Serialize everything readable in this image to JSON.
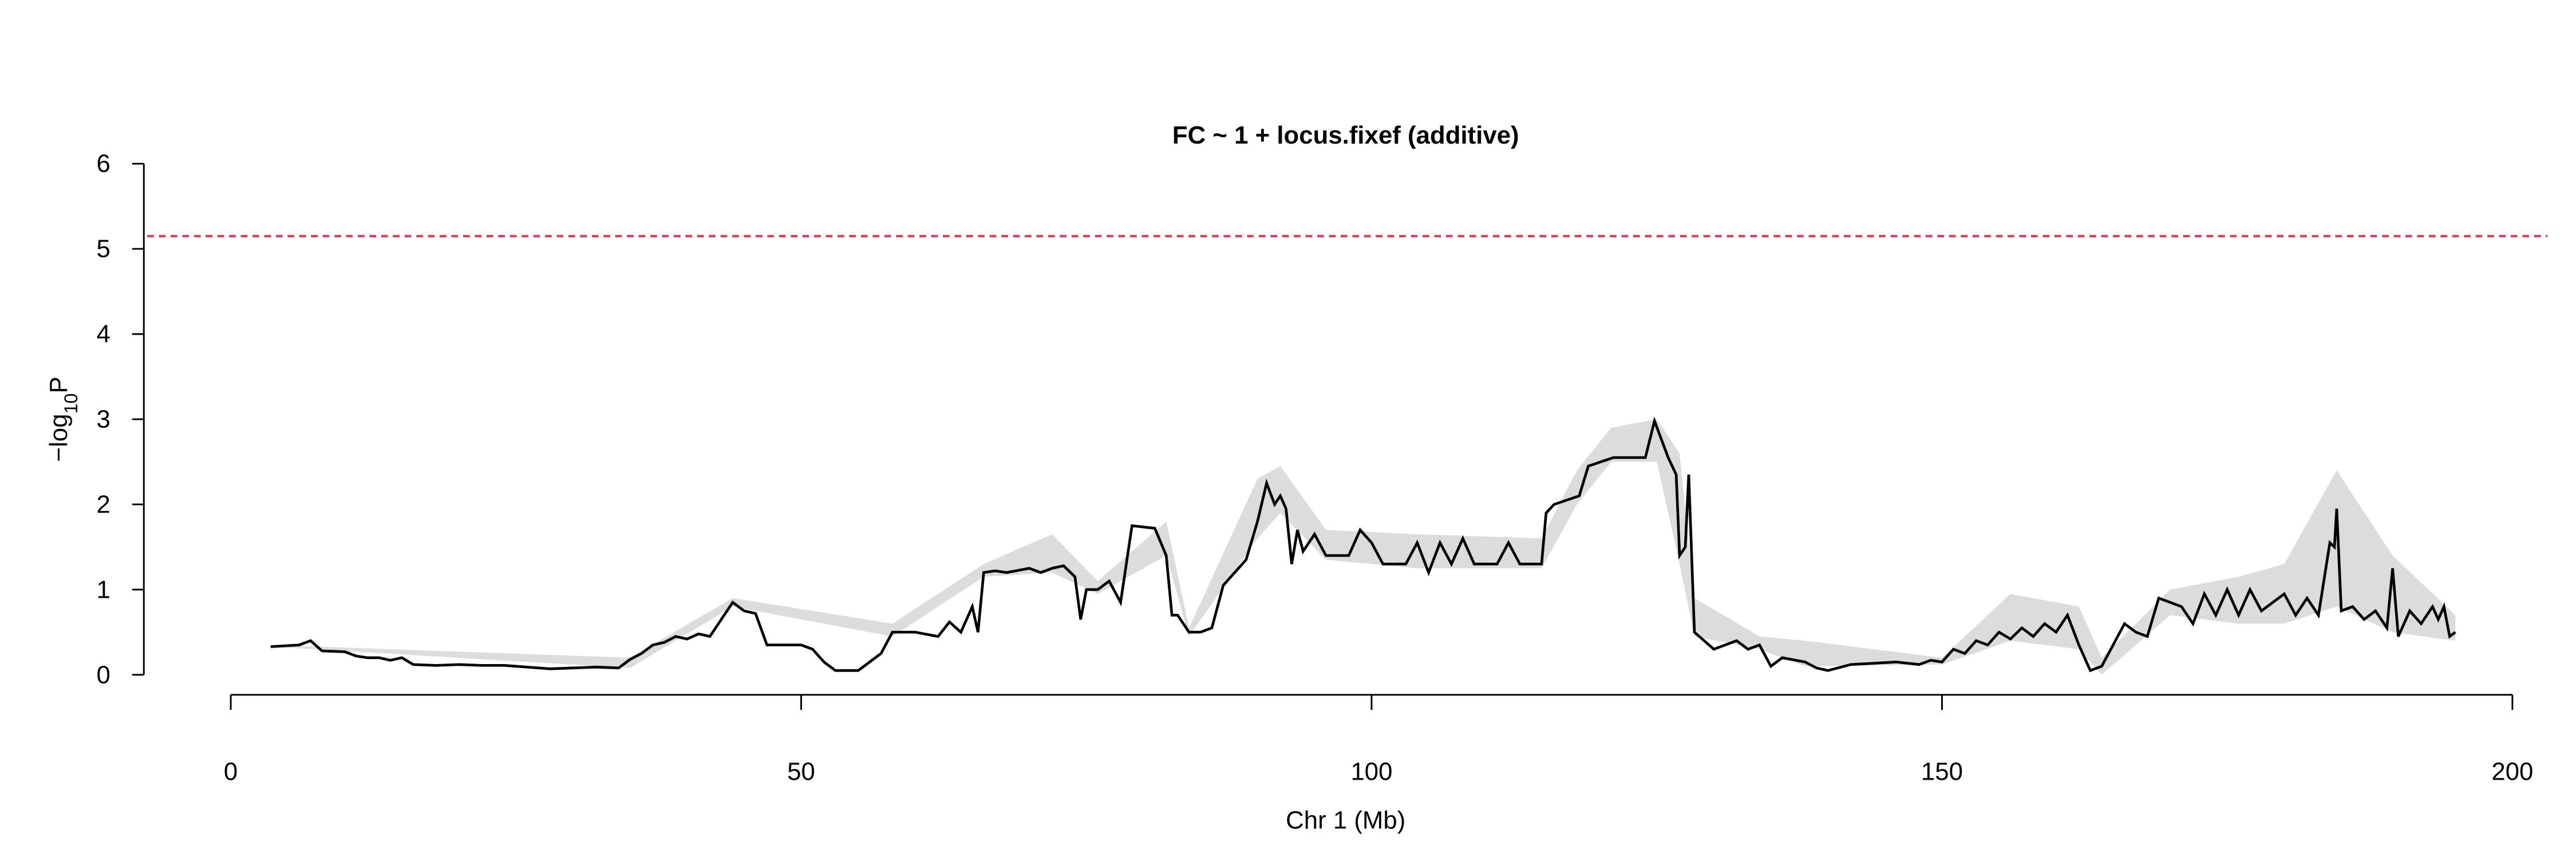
{
  "chart_data": {
    "type": "line",
    "title": "FC ~ 1 + locus.fixef (additive)",
    "xlabel": "Chr 1 (Mb)",
    "ylabel": {
      "prefix": "−log",
      "subscript": "10",
      "suffix": "P"
    },
    "xlim": [
      0,
      200
    ],
    "xticks": [
      0,
      50,
      100,
      150,
      200
    ],
    "ylim": [
      0,
      6
    ],
    "yticks": [
      0,
      1,
      2,
      3,
      4,
      5,
      6
    ],
    "threshold": 5.15,
    "threshold_color": "#e8334a",
    "x": [
      3.5,
      6,
      7,
      8,
      10,
      11,
      12,
      13,
      14,
      15,
      16,
      18,
      20,
      22,
      24,
      26,
      28,
      30,
      32,
      34,
      35,
      36,
      37,
      38,
      39,
      40,
      41,
      42,
      43,
      44,
      45,
      46,
      47,
      50,
      51,
      52,
      53,
      55,
      56,
      57,
      58,
      60,
      62,
      63,
      64,
      65,
      65.5,
      66,
      67,
      68,
      70,
      71,
      72,
      73,
      74,
      74.5,
      75,
      76,
      77,
      78,
      79,
      81,
      82,
      82.5,
      83,
      84,
      85,
      86,
      87,
      88,
      89,
      90,
      90.8,
      91.5,
      92,
      92.5,
      93,
      93.5,
      94,
      95,
      96,
      98,
      99,
      100,
      101,
      103,
      104,
      105,
      106,
      107,
      108,
      109,
      111,
      112,
      113,
      114.9,
      115.3,
      116,
      118.2,
      119,
      121.2,
      124,
      124.8,
      126,
      126.7,
      127,
      127.5,
      127.8,
      128.3,
      130,
      131,
      132,
      133,
      134,
      135,
      136,
      138,
      139,
      140,
      142,
      146,
      148,
      149,
      150,
      151,
      152,
      153,
      154,
      155,
      156,
      157,
      158,
      159,
      160,
      161,
      162,
      163,
      164,
      165,
      166,
      167,
      168,
      169,
      170,
      171,
      172,
      173,
      174,
      175,
      176,
      177,
      178,
      180,
      181,
      182,
      183,
      184,
      184.4,
      184.6,
      185,
      186,
      187,
      188,
      189,
      189.5,
      190,
      191,
      192,
      193,
      193.5,
      194,
      194.5,
      195
    ],
    "series": [
      {
        "color": "#000000",
        "values": [
          0.33,
          0.35,
          0.4,
          0.28,
          0.27,
          0.22,
          0.2,
          0.2,
          0.17,
          0.2,
          0.12,
          0.11,
          0.12,
          0.11,
          0.11,
          0.09,
          0.07,
          0.08,
          0.09,
          0.08,
          0.18,
          0.25,
          0.35,
          0.38,
          0.45,
          0.42,
          0.48,
          0.45,
          0.65,
          0.85,
          0.75,
          0.72,
          0.35,
          0.35,
          0.3,
          0.15,
          0.05,
          0.05,
          0.15,
          0.25,
          0.5,
          0.5,
          0.45,
          0.62,
          0.5,
          0.8,
          0.5,
          1.2,
          1.22,
          1.2,
          1.25,
          1.2,
          1.25,
          1.28,
          1.15,
          0.65,
          1.0,
          1.0,
          1.1,
          0.85,
          1.75,
          1.72,
          1.4,
          0.7,
          0.7,
          0.5,
          0.5,
          0.55,
          1.05,
          1.2,
          1.35,
          1.8,
          2.25,
          2.0,
          2.1,
          1.95,
          1.3,
          1.7,
          1.45,
          1.65,
          1.4,
          1.4,
          1.7,
          1.55,
          1.3,
          1.3,
          1.55,
          1.2,
          1.55,
          1.3,
          1.6,
          1.3,
          1.3,
          1.55,
          1.3,
          1.3,
          1.9,
          2.0,
          2.1,
          2.45,
          2.55,
          2.55,
          2.98,
          2.55,
          2.35,
          1.4,
          1.5,
          2.35,
          0.5,
          0.3,
          0.35,
          0.4,
          0.3,
          0.35,
          0.1,
          0.2,
          0.15,
          0.08,
          0.05,
          0.12,
          0.15,
          0.12,
          0.17,
          0.15,
          0.3,
          0.25,
          0.4,
          0.35,
          0.5,
          0.42,
          0.55,
          0.45,
          0.6,
          0.5,
          0.7,
          0.35,
          0.05,
          0.1,
          0.35,
          0.6,
          0.5,
          0.45,
          0.9,
          0.85,
          0.8,
          0.6,
          0.95,
          0.7,
          1.0,
          0.7,
          1.0,
          0.75,
          0.95,
          0.7,
          0.9,
          0.7,
          1.55,
          1.5,
          1.95,
          0.75,
          0.8,
          0.65,
          0.75,
          0.55,
          1.25,
          0.45,
          0.75,
          0.6,
          0.8,
          0.65,
          0.8,
          0.45,
          0.5
        ]
      }
    ],
    "band": {
      "color": "#dcdcdc",
      "x": [
        3.5,
        35,
        44,
        58,
        66,
        72,
        76,
        82,
        84,
        90,
        92,
        96,
        104,
        114.9,
        118,
        121,
        125,
        127,
        128.3,
        134,
        138,
        150,
        156,
        162,
        164,
        170,
        176,
        180,
        184.6,
        189.5,
        195
      ],
      "lower": [
        0.33,
        0.08,
        0.8,
        0.45,
        1.15,
        1.2,
        0.95,
        1.4,
        0.45,
        1.6,
        1.9,
        1.35,
        1.25,
        1.25,
        2.0,
        2.5,
        2.5,
        1.3,
        0.45,
        0.3,
        0.1,
        0.12,
        0.4,
        0.3,
        0,
        0.7,
        0.6,
        0.6,
        0.8,
        0.5,
        0.4
      ],
      "upper": [
        0.35,
        0.2,
        0.9,
        0.6,
        1.3,
        1.65,
        1.1,
        1.8,
        0.55,
        2.3,
        2.45,
        1.7,
        1.65,
        1.6,
        2.4,
        2.9,
        3.0,
        2.6,
        0.9,
        0.45,
        0.4,
        0.2,
        0.95,
        0.8,
        0.2,
        1.0,
        1.15,
        1.3,
        2.4,
        1.4,
        0.7
      ]
    }
  }
}
